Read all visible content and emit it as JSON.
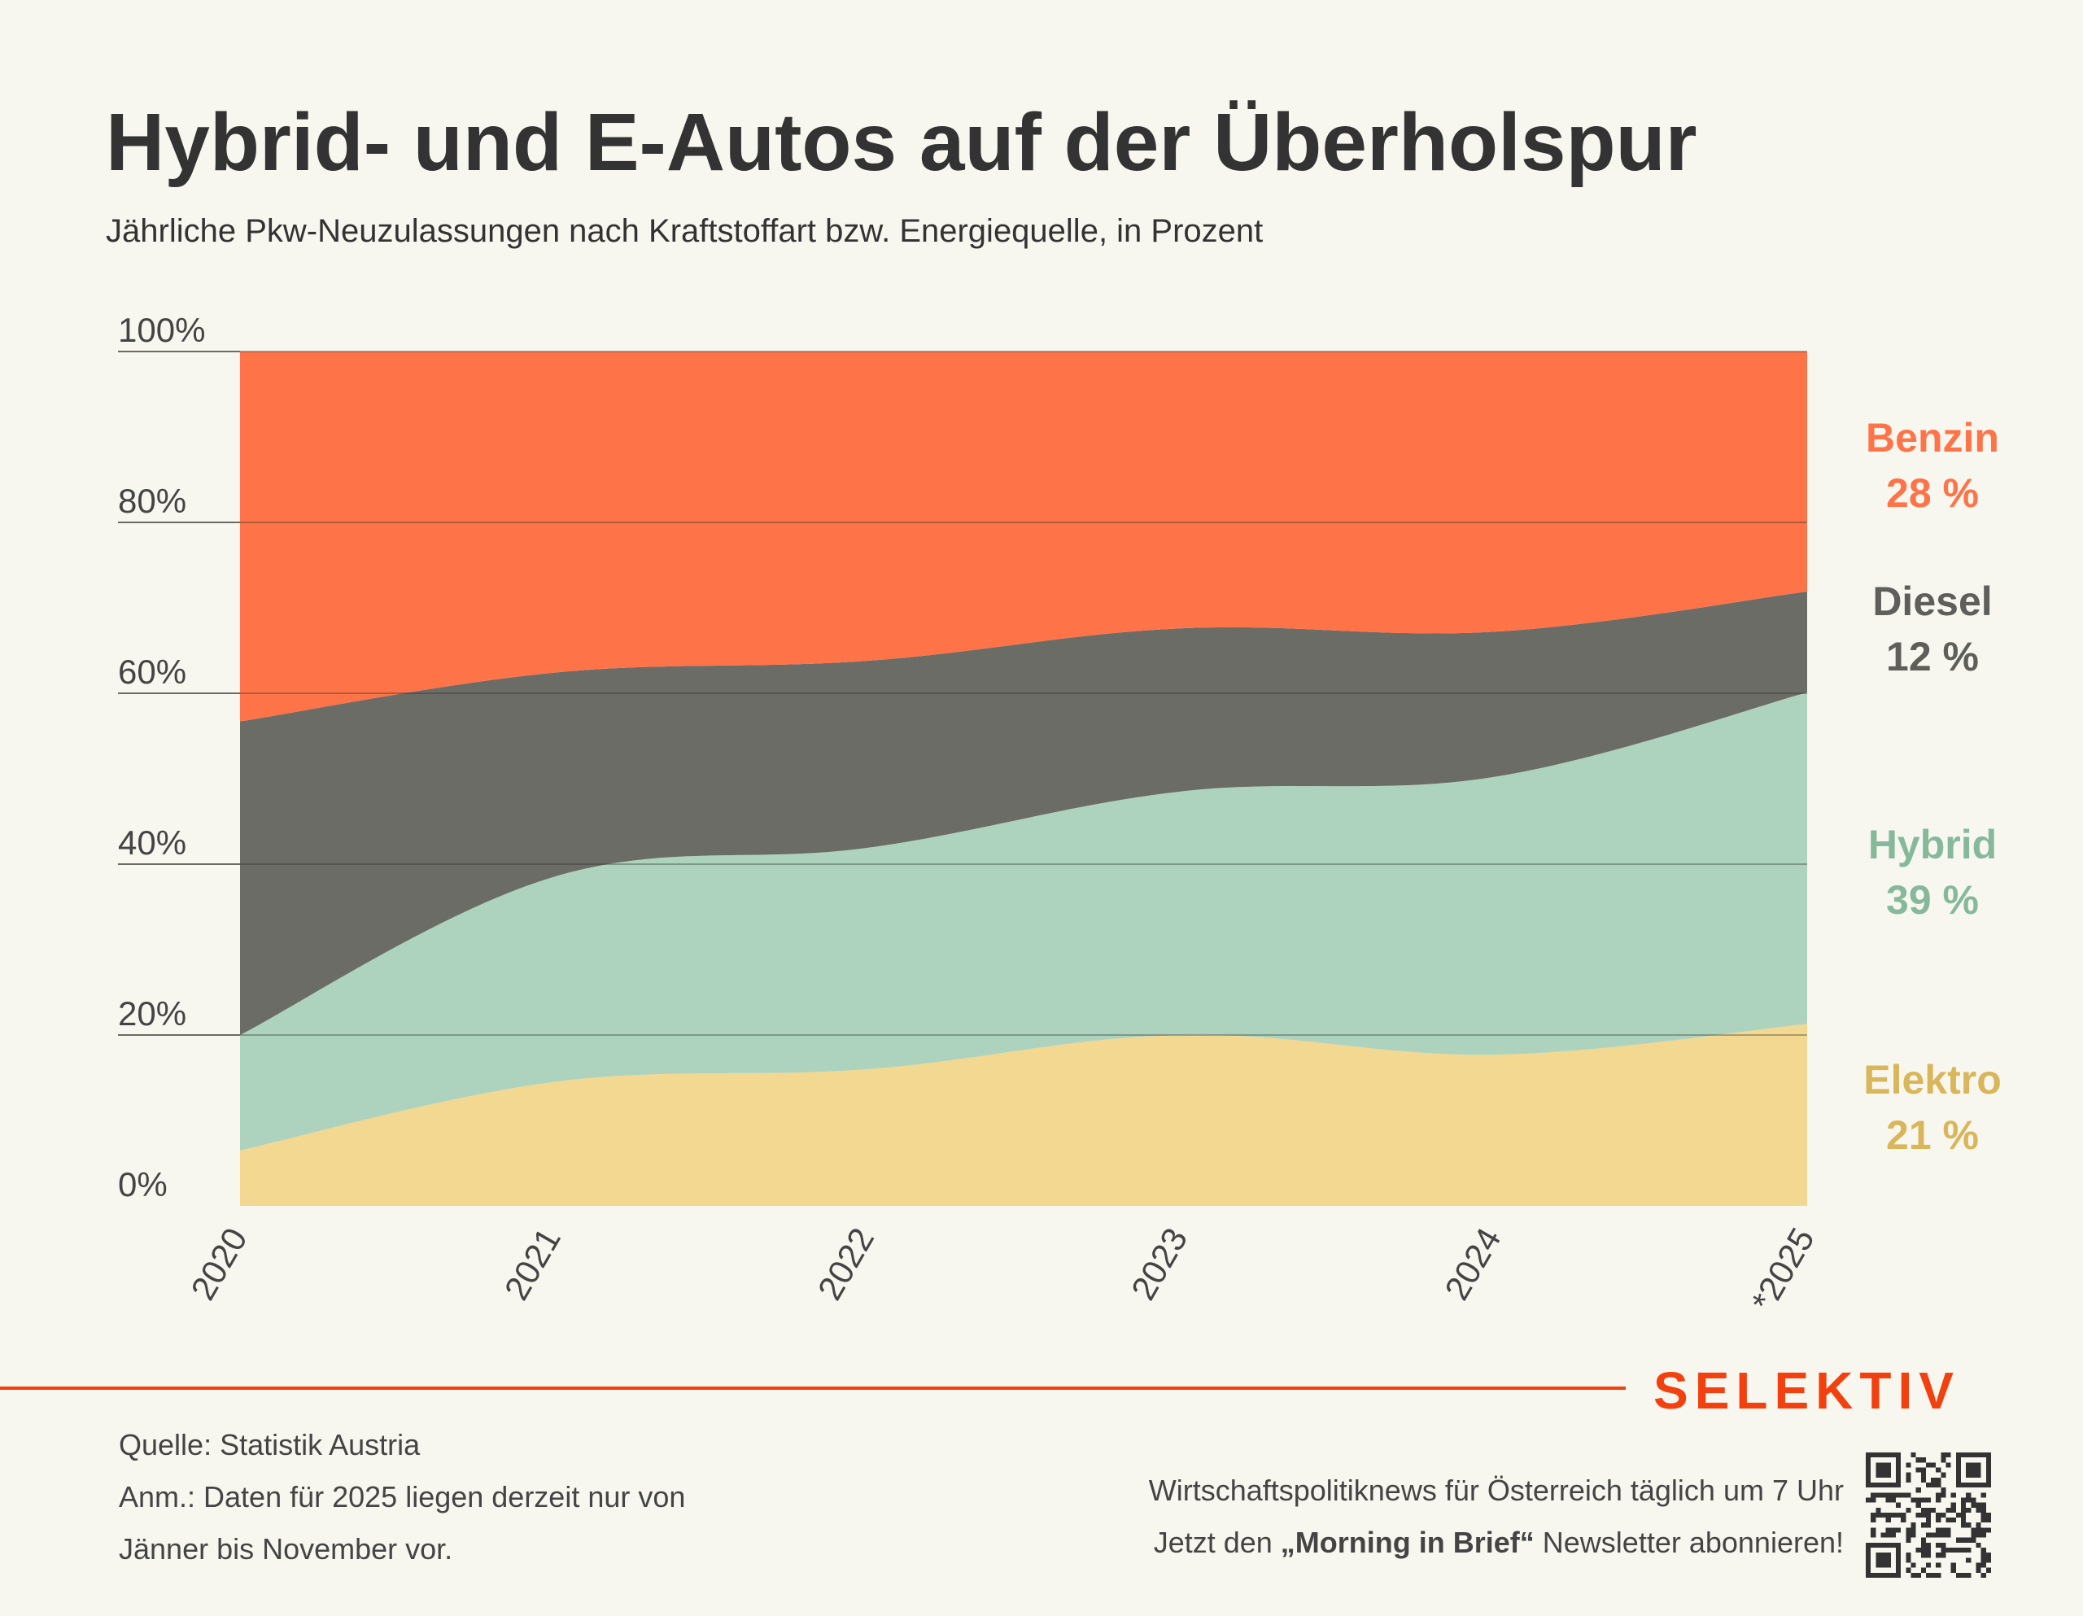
{
  "header": {
    "title": "Hybrid- und E-Autos auf der Überholspur",
    "subtitle": "Jährliche Pkw-Neuzulassungen nach Kraftstoffart bzw. Energiequelle, in Prozent"
  },
  "colors": {
    "benzin": "#fe7348",
    "diesel": "#6c6c67",
    "hybrid": "#add3be",
    "elektro": "#f2d890",
    "benzin_label": "#fe7348",
    "diesel_label": "#5e5e5a",
    "hybrid_label": "#86b99c",
    "elektro_label": "#d9b65a",
    "brand": "#f2400f",
    "background": "#f8f7ef"
  },
  "chart_data": {
    "type": "area",
    "stacked": true,
    "normalized": true,
    "title": "Hybrid- und E-Autos auf der Überholspur",
    "subtitle": "Jährliche Pkw-Neuzulassungen nach Kraftstoffart bzw. Energiequelle, in Prozent",
    "xlabel": "",
    "ylabel": "",
    "categories": [
      "2020",
      "2021",
      "2022",
      "2023",
      "2024",
      "*2025"
    ],
    "ylim": [
      0,
      100
    ],
    "yticks": [
      0,
      20,
      40,
      60,
      80,
      100
    ],
    "ytick_labels": [
      "0%",
      "20%",
      "40%",
      "60%",
      "80%",
      "100%"
    ],
    "grid": true,
    "legend": "right",
    "series": [
      {
        "name": "Elektro",
        "values": [
          6.5,
          14.5,
          16.0,
          20.0,
          17.7,
          21.3
        ]
      },
      {
        "name": "Hybrid",
        "values": [
          13.5,
          24.0,
          25.9,
          28.5,
          32.5,
          38.8
        ]
      },
      {
        "name": "Diesel",
        "values": [
          36.7,
          23.9,
          21.9,
          19.1,
          17.0,
          11.8
        ]
      },
      {
        "name": "Benzin",
        "values": [
          43.3,
          37.6,
          36.2,
          32.4,
          32.8,
          28.1
        ]
      }
    ],
    "end_labels": [
      {
        "name": "Benzin",
        "value": "28 %"
      },
      {
        "name": "Diesel",
        "value": "12 %"
      },
      {
        "name": "Hybrid",
        "value": "39 %"
      },
      {
        "name": "Elektro",
        "value": "21 %"
      }
    ]
  },
  "footer": {
    "brand": "SELEKTIV",
    "source": "Quelle: Statistik Austria",
    "note_line1": "Anm.: Daten für 2025 liegen derzeit nur von",
    "note_line2": "Jänner bis November vor.",
    "promo_line1": "Wirtschaftspolitiknews für Österreich täglich um 7 Uhr",
    "promo_line2_pre": "Jetzt den ",
    "promo_line2_bold": "„Morning in Brief“",
    "promo_line2_post": " Newsletter abonnieren!"
  }
}
